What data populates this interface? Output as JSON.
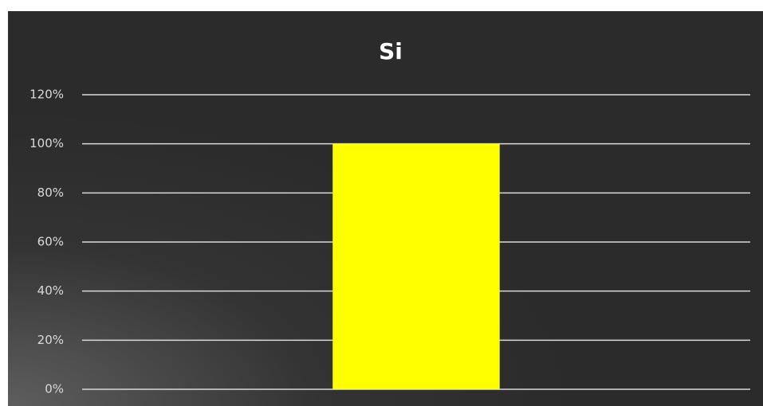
{
  "chart_data": {
    "type": "bar",
    "title": "Si",
    "categories": [
      null
    ],
    "values": [
      100
    ],
    "color": "#ffff00",
    "ylim": [
      0,
      120
    ],
    "yticks": [
      {
        "value": 0,
        "label": "0%"
      },
      {
        "value": 20,
        "label": "20%"
      },
      {
        "value": 40,
        "label": "40%"
      },
      {
        "value": 60,
        "label": "60%"
      },
      {
        "value": 80,
        "label": "80%"
      },
      {
        "value": 100,
        "label": "100%"
      },
      {
        "value": 120,
        "label": "120%"
      }
    ],
    "grid": true
  }
}
